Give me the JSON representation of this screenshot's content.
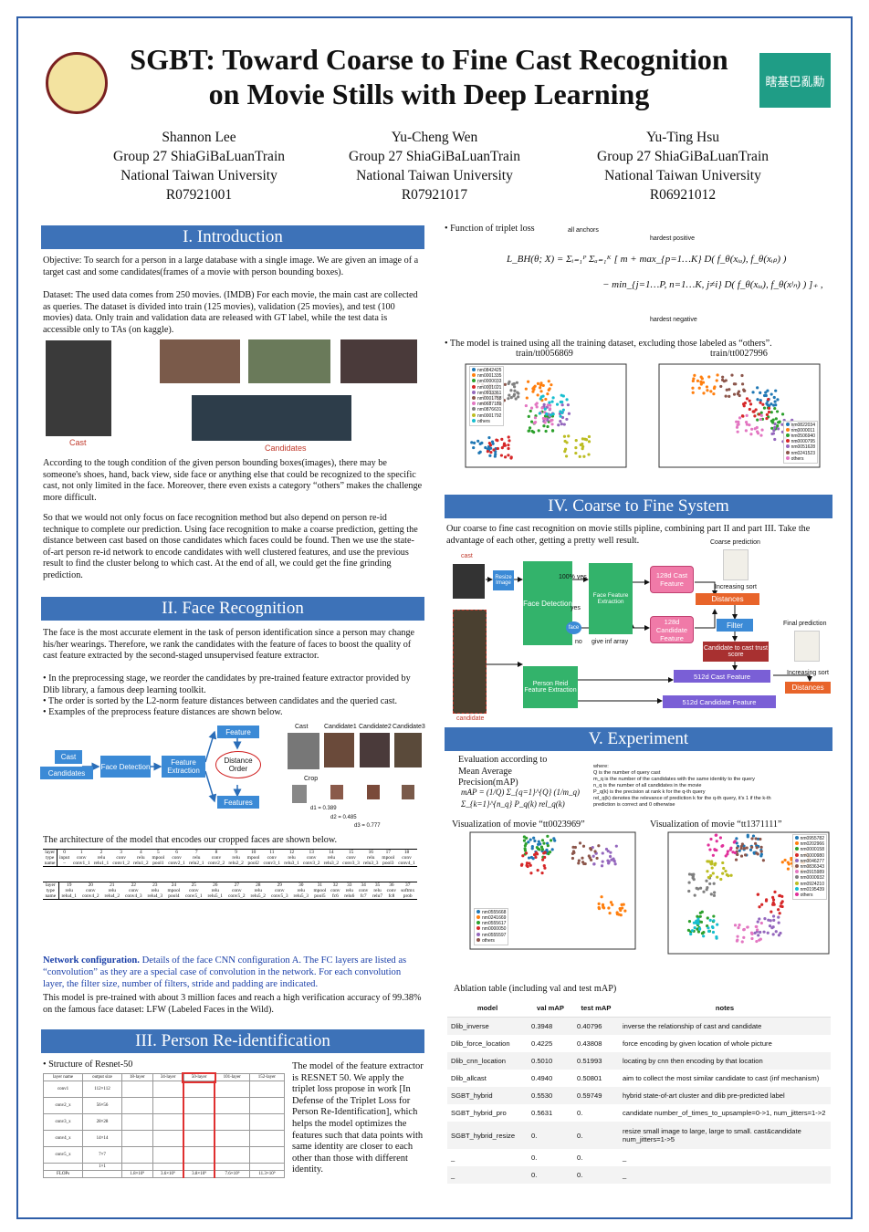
{
  "header": {
    "title_lines": [
      "SGBT: Toward Coarse to Fine Cast Recognition",
      "on Movie Stills with Deep Learning"
    ],
    "logo_text": "瞎基巴亂勳",
    "authors": [
      {
        "name": "Shannon Lee",
        "group": "Group 27 ShiaGiBaLuanTrain",
        "school": "National Taiwan University",
        "id": "R07921001"
      },
      {
        "name": "Yu-Cheng Wen",
        "group": "Group 27 ShiaGiBaLuanTrain",
        "school": "National Taiwan University",
        "id": "R07921017"
      },
      {
        "name": "Yu-Ting Hsu",
        "group": "Group 27 ShiaGiBaLuanTrain",
        "school": "National Taiwan University",
        "id": "R06921012"
      }
    ]
  },
  "intro": {
    "heading": "I. Introduction",
    "paragraphs": [
      "Objective: To search for a person in a large database with a single image. We are given an image of a target cast and some candidates(frames of a movie with person bounding boxes).",
      "Dataset: The used data comes from 250 movies. (IMDB) For each movie, the main cast are collected as queries. The dataset is divided into train (125 movies), validation (25 movies), and test (100 movies) data. Only train and validation data are released with GT label, while the test data is accessible only to TAs (on kaggle).",
      "According to the tough condition of the given person bounding boxes(images), there may be someone's shoes, hand, back view, side face or anything else that could be recognized to the specific cast, not only limited in the face. Moreover, there even exists a category “others” makes the challenge more difficult.",
      "So that we would not only focus on face recognition method but also depend on person re-id technique to complete our prediction. Using face recognition to make a coarse prediction, getting the distance between cast based on those candidates which faces could be found. Then we use the state-of-art person re-id network to encode candidates with well clustered features, and use the previous result to find the cluster belong to which cast. At the end of all, we could get the fine grinding prediction."
    ],
    "cast_label": "Cast",
    "candidates_label": "Candidates"
  },
  "face": {
    "heading": "II. Face Recognition",
    "paragraph": "The face is the most accurate element in the task of person identification since a person may change his/her wearings. Therefore, we rank the candidates with the feature of faces to boost the quality of cast feature extracted by the second-staged unsupervised feature extractor.",
    "bullets": [
      "• In the preprocessing stage, we reorder the candidates by pre-trained feature extractor provided by Dlib library, a famous deep learning toolkit.",
      "• The order is sorted by the L2-norm feature distances between candidates and the queried cast.",
      "• Examples of the preprocess feature distances are shown below."
    ],
    "diagram": {
      "cast": "Cast",
      "candidates": "Candidates",
      "detection": "Face Detection",
      "extraction": "Feature Extraction",
      "feature": "Feature",
      "distance": "Distance Order",
      "features": "Features"
    },
    "example": {
      "cast": "Cast",
      "candidate1": "Candidate1",
      "candidate2": "Candidate2",
      "candidate3": "Candidate3",
      "crop": "Crop",
      "d1": "d1 = 0.389",
      "d2": "d2 = 0.485",
      "d3": "d3 = 0.777"
    },
    "caption": "The architecture of the model that encodes our cropped faces are shown below.",
    "cnn_table": [
      {
        "layer": [
          "layer",
          "0",
          "1",
          "2",
          "3",
          "4",
          "5",
          "6",
          "7",
          "8",
          "9",
          "10",
          "11",
          "12",
          "13",
          "14",
          "15",
          "16",
          "17",
          "18"
        ],
        "type": [
          "type",
          "input",
          "conv",
          "relu",
          "conv",
          "relu",
          "mpool",
          "conv",
          "relu",
          "conv",
          "relu",
          "mpool",
          "conv",
          "relu",
          "conv",
          "relu",
          "conv",
          "relu",
          "mpool",
          "conv"
        ],
        "name": [
          "name",
          "–",
          "conv1_1",
          "relu1_1",
          "conv1_2",
          "relu1_2",
          "pool1",
          "conv2_1",
          "relu2_1",
          "conv2_2",
          "relu2_2",
          "pool2",
          "conv3_1",
          "relu3_1",
          "conv3_2",
          "relu3_2",
          "conv3_3",
          "relu3_3",
          "pool3",
          "conv4_1"
        ]
      },
      {
        "layer": [
          "layer",
          "19",
          "20",
          "21",
          "22",
          "23",
          "24",
          "25",
          "26",
          "27",
          "28",
          "29",
          "30",
          "31",
          "32",
          "33",
          "34",
          "35",
          "36",
          "37"
        ],
        "type": [
          "type",
          "relu",
          "conv",
          "relu",
          "conv",
          "relu",
          "mpool",
          "conv",
          "relu",
          "conv",
          "relu",
          "conv",
          "relu",
          "mpool",
          "conv",
          "relu",
          "conv",
          "relu",
          "conv",
          "softmx"
        ],
        "name": [
          "name",
          "relu4_1",
          "conv4_2",
          "relu4_2",
          "conv4_3",
          "relu4_3",
          "pool4",
          "conv5_1",
          "relu5_1",
          "conv5_2",
          "relu5_2",
          "conv5_3",
          "relu5_3",
          "pool5",
          "fc6",
          "relu6",
          "fc7",
          "relu7",
          "fc8",
          "prob"
        ]
      }
    ],
    "config_bold": "Network configuration.",
    "config_text": " Details of the face CNN configuration A. The FC layers are listed as “convolution” as they are a special case of convolution in the network. For each convolution layer, the filter size, number of filters, stride and padding are indicated.",
    "closing": "This model is pre-trained with about 3 million faces and reach a high verification accuracy of 99.38% on the famous face dataset: LFW (Labeled Faces in the Wild)."
  },
  "reid": {
    "heading": "III. Person Re-identification",
    "bullet": "• Structure of Resnet-50",
    "text": "The model of the feature extractor is RESNET 50. We apply the triplet loss propose in work [In Defense of the Triplet Loss for Person Re-Identification], which helps the model optimizes the features such that data points with same identity are closer to each other than those with different identity.",
    "resnet": {
      "header": [
        "layer name",
        "output size",
        "18-layer",
        "34-layer",
        "50-layer",
        "101-layer",
        "152-layer"
      ],
      "rows": [
        [
          "conv1",
          "112×112"
        ],
        [
          "conv2_x",
          "56×56"
        ],
        [
          "conv3_x",
          "28×28"
        ],
        [
          "conv4_x",
          "14×14"
        ],
        [
          "conv5_x",
          "7×7"
        ],
        [
          "",
          "1×1"
        ],
        [
          "FLOPs",
          "",
          "1.8×10⁹",
          "3.6×10⁹",
          "3.8×10⁹",
          "7.6×10⁹",
          "11.3×10⁹"
        ]
      ]
    }
  },
  "triplet": {
    "bullet": "• Function of triplet loss",
    "all_anchors": "all anchors",
    "hardest_positive": "hardest positive",
    "hardest_negative": "hardest negative",
    "formula_lines": [
      "L_BH(θ; X) = Σᵢ₌₁ᴾ Σₐ₌₁ᴷ [ m + max_{p=1…K} D( f_θ(xᵢₐ), f_θ(xᵢₚ) )",
      "− min_{j=1…P, n=1…K, j≠i} D( f_θ(xᵢₐ), f_θ(xʲₙ) ) ]₊ ,"
    ],
    "note": "• The model is trained using all the training dataset, excluding those labeled as “others”.",
    "plots": [
      {
        "title": "train/tt0056869",
        "legend": [
          "nm0842425",
          "nm0001335",
          "nm0000033",
          "nm0001021",
          "nm0933361",
          "nm0001788",
          "nm0687189",
          "nm0876631",
          "nm0001792",
          "others"
        ]
      },
      {
        "title": "train/tt0027996",
        "legend": [
          "nm0822034",
          "nm0000011",
          "nm0506940",
          "nm0000795",
          "nm0051628",
          "nm0241523",
          "others"
        ]
      }
    ]
  },
  "system": {
    "heading": "IV. Coarse to Fine System",
    "text": "Our coarse to fine cast recognition on movie stills pipline, combining part II and part III. Take the advantage of each other, getting a pretty well result.",
    "labels": {
      "cast": "cast",
      "resize": "Resize Image",
      "detection": "Face Detection",
      "yes100": "100% yes",
      "yes": "yes",
      "face": "face",
      "no": "no",
      "inf": "give inf array",
      "extraction": "Face Feature Extraction",
      "cast128": "128d Cast Feature",
      "cand128": "128d Candidate Feature",
      "coarse": "Coarse prediction",
      "sort1": "Increasing sort",
      "dist1": "Distances",
      "filter": "Filter",
      "trust": "Candidate to cast trust score",
      "final": "Final prediction",
      "sort2": "Increasing sort",
      "dist2": "Distances",
      "reid": "Person Reid Feature Extraction",
      "cast512": "512d Cast Feature",
      "cand512": "512d Candidate Feature",
      "candidate": "candidate"
    }
  },
  "experiment": {
    "heading": "V. Experiment",
    "eval": "Evaluation according to Mean Average Precision(mAP)",
    "formula": "mAP = (1/Q) Σ_{q=1}^{Q} (1/m_q) Σ_{k=1}^{n_q} P_q(k) rel_q(k)",
    "where": [
      "where:",
      "Q is the number of query cast",
      "m_q is the number of the candidates with the same identity to the query",
      "n_q is the number of all candidates in the movie",
      "P_q(k) is the precision at rank k for the q-th query",
      "rel_q(k) denotes the relevance of prediction k for the q-th query, it's 1 if the k-th prediction is correct and 0 otherwise"
    ],
    "plots": [
      {
        "title": "Visualization of movie “tt0023969”",
        "legend": [
          "nm0555668",
          "nm0241669",
          "nm0555617",
          "nm0000050",
          "nm0555597",
          "others"
        ]
      },
      {
        "title": "Visualization of movie “tt1371111”",
        "legend": [
          "nm0955782",
          "nm0202966",
          "nm0000158",
          "nm0000980",
          "nm0046277",
          "nm0836343",
          "nm0915989",
          "nm0000932",
          "nm0924210",
          "nm0195439",
          "others"
        ]
      }
    ],
    "ablation_title": "Ablation table (including val and test mAP)",
    "table": {
      "columns": [
        "model",
        "val mAP",
        "test mAP",
        "notes"
      ],
      "rows": [
        [
          "Dlib_inverse",
          "0.3948",
          "0.40796",
          "inverse the relationship of cast and candidate"
        ],
        [
          "Dlib_force_location",
          "0.4225",
          "0.43808",
          "force encoding by given location of whole picture"
        ],
        [
          "Dlib_cnn_location",
          "0.5010",
          "0.51993",
          "locating by cnn then encoding by that location"
        ],
        [
          "Dlib_allcast",
          "0.4940",
          "0.50801",
          "aim to collect the most similar candidate to cast (inf mechanism)"
        ],
        [
          "SGBT_hybrid",
          "0.5530",
          "0.59749",
          "hybrid state-of-art cluster and dlib pre-predicted label"
        ],
        [
          "SGBT_hybrid_pro",
          "0.5631",
          "0.",
          "candidate number_of_times_to_upsample=0->1, num_jitters=1->2"
        ],
        [
          "SGBT_hybrid_resize",
          "0.",
          "0.",
          "resize small image to large, large to small. cast&candidate num_jitters=1->5"
        ],
        [
          "_",
          "0.",
          "0.",
          "_"
        ],
        [
          "_",
          "0.",
          "0.",
          "_"
        ]
      ]
    }
  }
}
